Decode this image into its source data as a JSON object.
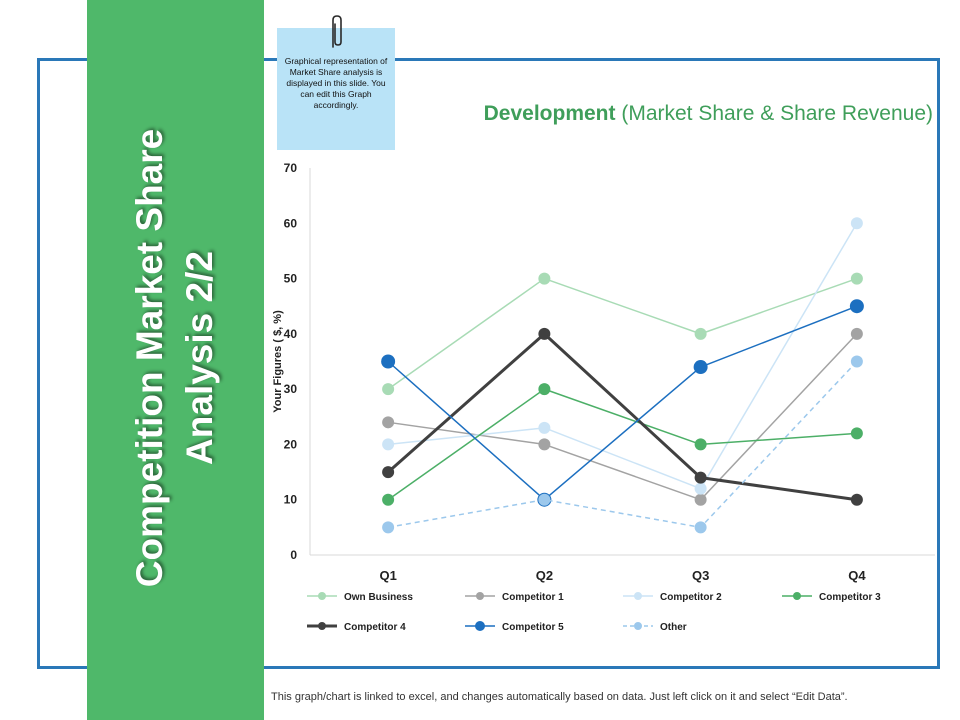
{
  "side_title": "Competition Market Share Analysis 2/2",
  "note": {
    "text": "Graphical representation of Market Share analysis is displayed in this slide. You can edit this Graph accordingly."
  },
  "title": {
    "main": "Development",
    "sub": "(Market Share & Share Revenue)"
  },
  "footnote": "This graph/chart is linked to excel, and changes automatically based on data. Just left click on it and select “Edit Data”.",
  "chart_data": {
    "type": "line",
    "title": "Development (Market Share & Share Revenue)",
    "xlabel": "",
    "ylabel": "Your Figures ( $, %)",
    "categories": [
      "Q1",
      "Q2",
      "Q3",
      "Q4"
    ],
    "ylim": [
      0,
      70
    ],
    "yticks": [
      0,
      10,
      20,
      30,
      40,
      50,
      60,
      70
    ],
    "grid": false,
    "legend_position": "bottom",
    "series": [
      {
        "name": "Own Business",
        "values": [
          30,
          50,
          40,
          50
        ],
        "color": "#a8dbb5",
        "width": 1.5,
        "marker": 6,
        "dashed": false
      },
      {
        "name": "Competitor 1",
        "values": [
          24,
          20,
          10,
          40
        ],
        "color": "#a3a3a3",
        "width": 1.5,
        "marker": 6,
        "dashed": false
      },
      {
        "name": "Competitor 2",
        "values": [
          20,
          23,
          12,
          60
        ],
        "color": "#cce4f6",
        "width": 1.5,
        "marker": 6,
        "dashed": false
      },
      {
        "name": "Competitor 3",
        "values": [
          10,
          30,
          20,
          22
        ],
        "color": "#4caf67",
        "width": 1.5,
        "marker": 6,
        "dashed": false
      },
      {
        "name": "Competitor 4",
        "values": [
          15,
          40,
          14,
          10
        ],
        "color": "#404040",
        "width": 3,
        "marker": 6,
        "dashed": false
      },
      {
        "name": "Competitor 5",
        "values": [
          35,
          10,
          34,
          45
        ],
        "color": "#1c6fc0",
        "width": 1.5,
        "marker": 7,
        "dashed": false
      },
      {
        "name": "Other",
        "values": [
          5,
          10,
          5,
          35
        ],
        "color": "#9cc8ec",
        "width": 1.5,
        "marker": 6,
        "dashed": true
      }
    ]
  }
}
